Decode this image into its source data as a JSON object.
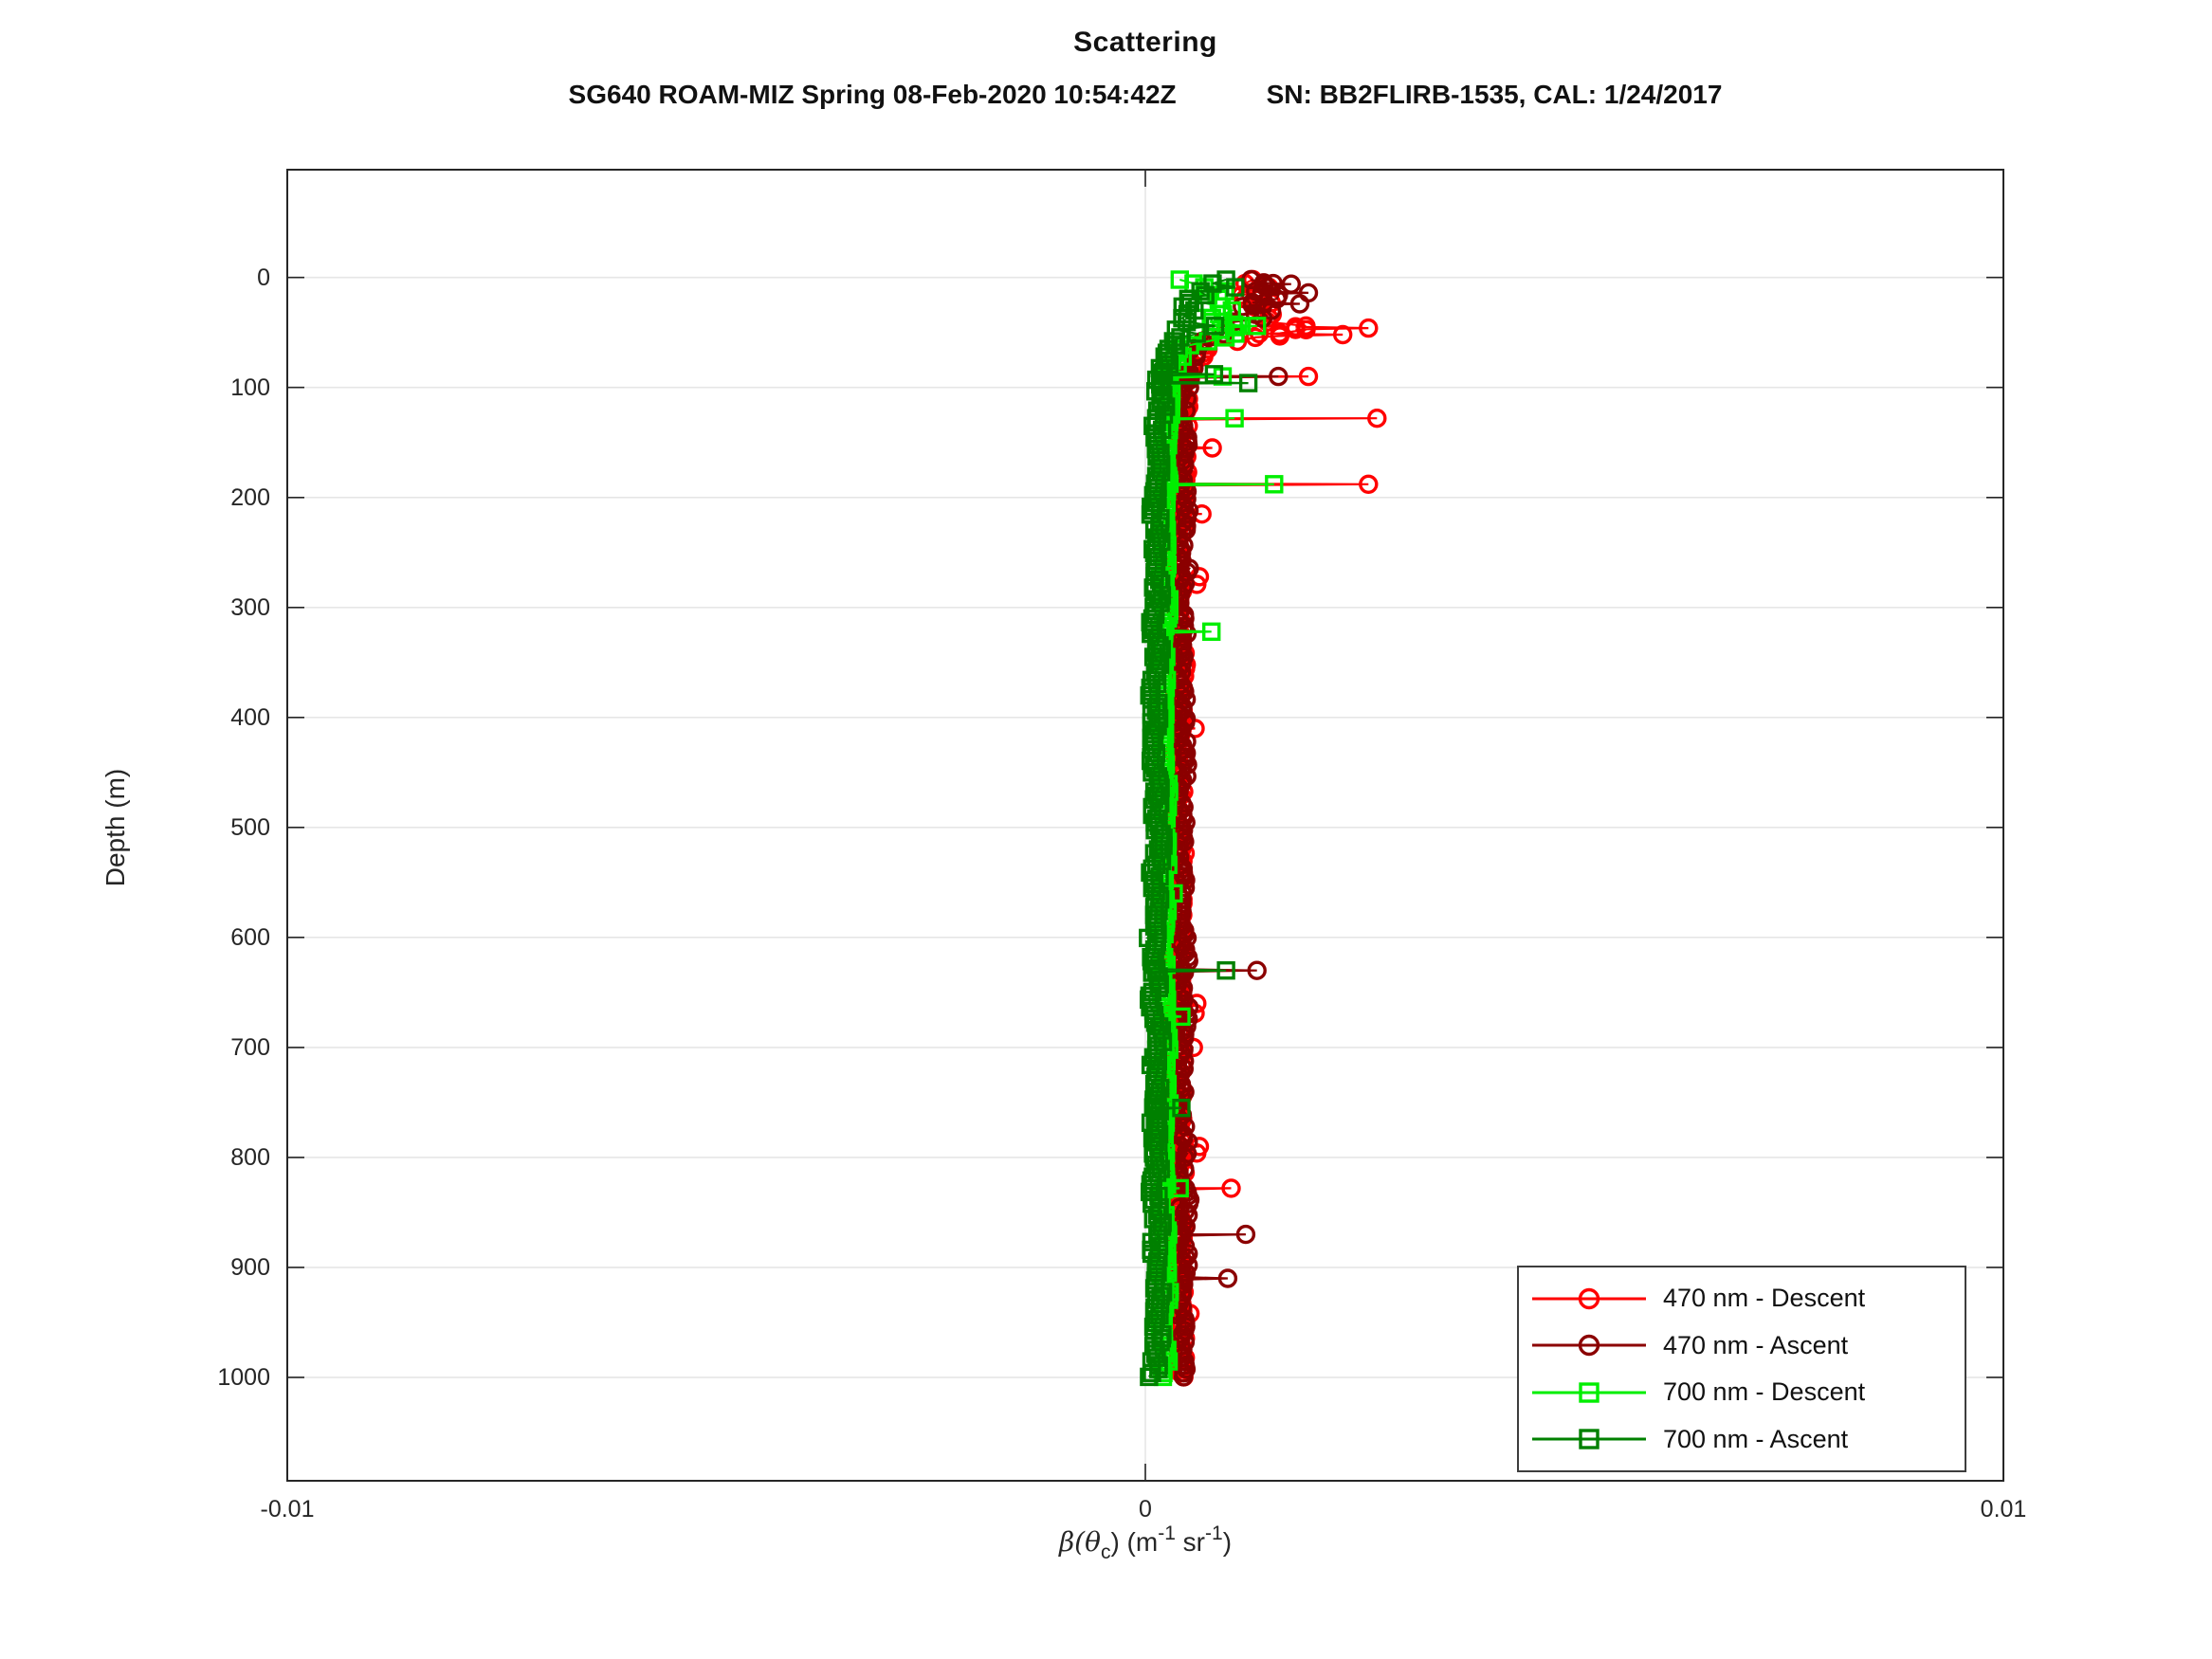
{
  "figure": {
    "title": "Scattering",
    "subtitle_left": "SG640 ROAM-MIZ Spring 08-Feb-2020 10:54:42Z",
    "subtitle_right": "SN: BB2FLIRB-1535, CAL: 1/24/2017",
    "ylabel": "Depth (m)",
    "xlabel": {
      "p1": "β(θ",
      "sub": "c",
      "p2": ") (m",
      "sup1": "-1",
      "p3": " sr",
      "sup2": "-1",
      "p4": ")"
    },
    "axis_color": "#262626",
    "grid_color": "#e6e6e6",
    "background": "#ffffff"
  },
  "legend": {
    "position": "southeast",
    "entries_from_series": true
  },
  "chart_data": {
    "type": "line",
    "title": "Scattering",
    "xlabel": "beta(theta_c) (m^-1 sr^-1)",
    "ylabel": "Depth (m)",
    "xlim": [
      -0.01,
      0.01
    ],
    "depth_lim": [
      -98,
      1094
    ],
    "y_axis_reversed": true,
    "grid": true,
    "x_ticks": [
      -0.01,
      0,
      0.01
    ],
    "x_tick_labels": [
      "-0.01",
      "0",
      "0.01"
    ],
    "y_ticks": [
      0,
      100,
      200,
      300,
      400,
      500,
      600,
      700,
      800,
      900,
      1000
    ],
    "y_tick_labels": [
      "0",
      "100",
      "200",
      "300",
      "400",
      "500",
      "600",
      "700",
      "800",
      "900",
      "1000"
    ],
    "profile_depth_range_m": [
      2,
      1000
    ],
    "sample_step_m": 3.5,
    "series": [
      {
        "name": "470 nm - Descent",
        "color": "#ff0000",
        "marker": "circle",
        "seed": 3,
        "mean_profile": [
          [
            0,
            0.0011
          ],
          [
            8,
            0.0012
          ],
          [
            18,
            0.00135
          ],
          [
            30,
            0.0015
          ],
          [
            42,
            0.0017
          ],
          [
            50,
            0.0018
          ],
          [
            56,
            0.0011
          ],
          [
            64,
            0.0007
          ],
          [
            78,
            0.00052
          ],
          [
            100,
            0.00046
          ],
          [
            150,
            0.00043
          ],
          [
            300,
            0.0004
          ],
          [
            600,
            0.00039
          ],
          [
            1000,
            0.00041
          ]
        ],
        "noise_profile": [
          [
            0,
            0.00035
          ],
          [
            50,
            0.0004
          ],
          [
            60,
            0.00018
          ],
          [
            75,
            0.0001
          ],
          [
            100,
            7e-05
          ],
          [
            1000,
            7e-05
          ]
        ],
        "spikes": [
          [
            46,
            0.0026
          ],
          [
            52,
            0.0023
          ],
          [
            90,
            0.0019
          ],
          [
            128,
            0.0027
          ],
          [
            155,
            0.00078
          ],
          [
            188,
            0.0026
          ],
          [
            215,
            0.00066
          ],
          [
            272,
            0.00063
          ],
          [
            279,
            0.0006
          ],
          [
            410,
            0.00058
          ],
          [
            660,
            0.0006
          ],
          [
            669,
            0.00058
          ],
          [
            700,
            0.00056
          ],
          [
            790,
            0.00063
          ],
          [
            796,
            0.0006
          ],
          [
            828,
            0.001
          ],
          [
            942,
            0.00052
          ]
        ]
      },
      {
        "name": "470 nm - Ascent",
        "color": "#8b0000",
        "marker": "circle",
        "seed": 7,
        "mean_profile": [
          [
            0,
            0.00135
          ],
          [
            10,
            0.0014
          ],
          [
            20,
            0.0013
          ],
          [
            35,
            0.0011
          ],
          [
            50,
            0.0009
          ],
          [
            62,
            0.00062
          ],
          [
            80,
            0.0005
          ],
          [
            120,
            0.00045
          ],
          [
            300,
            0.00042
          ],
          [
            1000,
            0.00043
          ]
        ],
        "noise_profile": [
          [
            0,
            0.0003
          ],
          [
            40,
            0.00032
          ],
          [
            55,
            0.00016
          ],
          [
            80,
            0.0001
          ],
          [
            120,
            8e-05
          ],
          [
            1000,
            8e-05
          ]
        ],
        "spikes": [
          [
            6,
            0.0017
          ],
          [
            14,
            0.0019
          ],
          [
            24,
            0.0018
          ],
          [
            90,
            0.00155
          ],
          [
            630,
            0.0013
          ],
          [
            870,
            0.00117
          ],
          [
            910,
            0.00096
          ]
        ]
      },
      {
        "name": "700 nm - Descent",
        "color": "#00ee00",
        "marker": "square",
        "seed": 11,
        "mean_profile": [
          [
            0,
            0.0005
          ],
          [
            10,
            0.0007
          ],
          [
            25,
            0.0009
          ],
          [
            40,
            0.001
          ],
          [
            52,
            0.0011
          ],
          [
            58,
            0.0006
          ],
          [
            68,
            0.00035
          ],
          [
            85,
            0.00028
          ],
          [
            120,
            0.00024
          ],
          [
            300,
            0.00022
          ],
          [
            1000,
            0.00022
          ]
        ],
        "noise_profile": [
          [
            0,
            0.00025
          ],
          [
            52,
            0.00028
          ],
          [
            62,
            0.00012
          ],
          [
            85,
            8e-05
          ],
          [
            120,
            6e-05
          ],
          [
            1000,
            6e-05
          ]
        ],
        "spikes": [
          [
            44,
            0.0013
          ],
          [
            90,
            0.0009
          ],
          [
            128,
            0.00104
          ],
          [
            188,
            0.0015
          ],
          [
            322,
            0.00077
          ],
          [
            560,
            0.00033
          ],
          [
            672,
            0.00042
          ],
          [
            828,
            0.0004
          ]
        ]
      },
      {
        "name": "700 nm - Ascent",
        "color": "#008000",
        "marker": "square",
        "seed": 17,
        "mean_profile": [
          [
            0,
            0.0008
          ],
          [
            12,
            0.0009
          ],
          [
            25,
            0.00085
          ],
          [
            38,
            0.0007
          ],
          [
            50,
            0.0005
          ],
          [
            60,
            0.0003
          ],
          [
            80,
            0.0002
          ],
          [
            110,
            0.00015
          ],
          [
            300,
            0.00012
          ],
          [
            1000,
            0.00013
          ]
        ],
        "noise_profile": [
          [
            0,
            0.00045
          ],
          [
            40,
            0.0004
          ],
          [
            55,
            0.0002
          ],
          [
            80,
            0.00011
          ],
          [
            110,
            8e-05
          ],
          [
            1000,
            8e-05
          ]
        ],
        "spikes": [
          [
            88,
            0.0008
          ],
          [
            96,
            0.0012
          ],
          [
            630,
            0.00094
          ],
          [
            755,
            0.00042
          ]
        ]
      }
    ]
  }
}
